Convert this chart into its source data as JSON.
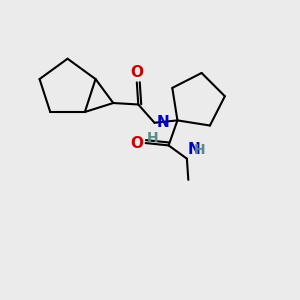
{
  "bg_color": "#ebebeb",
  "bond_color": "#000000",
  "N_color": "#0000cc",
  "O_color": "#cc0000",
  "line_width": 1.5,
  "font_size_N": 11,
  "font_size_H": 10,
  "font_size_O": 11,
  "fig_size": [
    3.0,
    3.0
  ],
  "dpi": 100,
  "xlim": [
    0,
    10
  ],
  "ylim": [
    0,
    10
  ]
}
